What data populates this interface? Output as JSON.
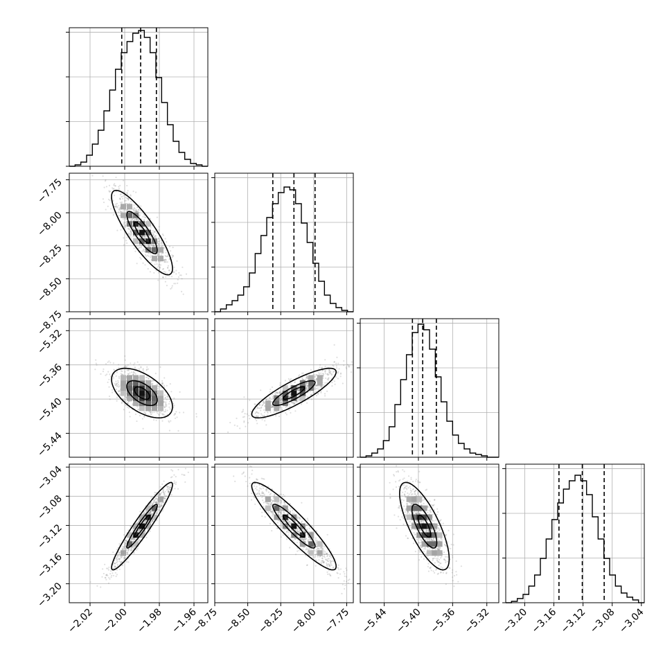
{
  "chart_data": {
    "type": "corner",
    "title": "",
    "grid": true,
    "parameters": [
      {
        "label": "",
        "mean": -1.99,
        "sd": 0.0088,
        "range": [
          -2.032,
          -1.952
        ],
        "ticks": [
          -2.02,
          -2.0,
          -1.98,
          -1.96
        ],
        "tick_labels": [
          "−2.02",
          "−2.00",
          "−1.98",
          "−1.96"
        ],
        "quantiles": [
          -2.0017,
          -1.9908,
          -1.9817
        ]
      },
      {
        "label": "",
        "mean": -8.15,
        "sd": 0.16,
        "range": [
          -8.75,
          -7.7
        ],
        "ticks": [
          -8.75,
          -8.5,
          -8.25,
          -8.0,
          -7.75
        ],
        "tick_labels": [
          "−8.75",
          "−8.50",
          "−8.25",
          "−8.00",
          "−7.75"
        ],
        "quantiles": [
          -8.31,
          -8.15,
          -7.99
        ]
      },
      {
        "label": "",
        "mean": -5.393,
        "sd": 0.0145,
        "range": [
          -5.468,
          -5.306
        ],
        "ticks": [
          -5.44,
          -5.4,
          -5.36,
          -5.32
        ],
        "tick_labels": [
          "−5.44",
          "−5.40",
          "−5.36",
          "−5.32"
        ],
        "quantiles": [
          -5.407,
          -5.395,
          -5.379
        ]
      },
      {
        "label": "",
        "mean": -3.121,
        "sd": 0.03,
        "range": [
          -3.226,
          -3.036
        ],
        "ticks": [
          -3.2,
          -3.16,
          -3.12,
          -3.08,
          -3.04
        ],
        "tick_labels": [
          "−3.20",
          "−3.16",
          "−3.12",
          "−3.08",
          "−3.04"
        ],
        "quantiles": [
          -3.153,
          -3.121,
          -3.091
        ]
      }
    ],
    "correlations": [
      [
        1.0,
        -0.85,
        -0.55,
        0.95
      ],
      [
        -0.85,
        1.0,
        0.85,
        -0.92
      ],
      [
        -0.55,
        0.85,
        1.0,
        -0.75
      ],
      [
        0.95,
        -0.92,
        -0.75,
        1.0
      ]
    ],
    "histograms": [
      [
        0.0,
        0.01,
        0.03,
        0.08,
        0.16,
        0.26,
        0.4,
        0.55,
        0.7,
        0.82,
        0.9,
        0.96,
        0.98,
        0.93,
        0.82,
        0.64,
        0.46,
        0.3,
        0.18,
        0.1,
        0.05,
        0.02,
        0.01,
        0.0
      ],
      [
        0.0,
        0.02,
        0.05,
        0.08,
        0.12,
        0.18,
        0.28,
        0.42,
        0.55,
        0.68,
        0.78,
        0.86,
        0.9,
        0.88,
        0.78,
        0.64,
        0.5,
        0.35,
        0.22,
        0.12,
        0.06,
        0.03,
        0.01,
        0.0
      ],
      [
        0.0,
        0.01,
        0.03,
        0.06,
        0.12,
        0.22,
        0.38,
        0.56,
        0.74,
        0.9,
        0.96,
        0.92,
        0.78,
        0.58,
        0.4,
        0.26,
        0.16,
        0.1,
        0.06,
        0.03,
        0.02,
        0.01,
        0.0,
        0.0
      ],
      [
        0.0,
        0.01,
        0.03,
        0.06,
        0.12,
        0.2,
        0.32,
        0.46,
        0.6,
        0.72,
        0.82,
        0.88,
        0.92,
        0.88,
        0.78,
        0.62,
        0.46,
        0.32,
        0.2,
        0.12,
        0.07,
        0.04,
        0.02,
        0.0
      ]
    ],
    "density_contour_levels": [
      0.393,
      0.865
    ]
  }
}
